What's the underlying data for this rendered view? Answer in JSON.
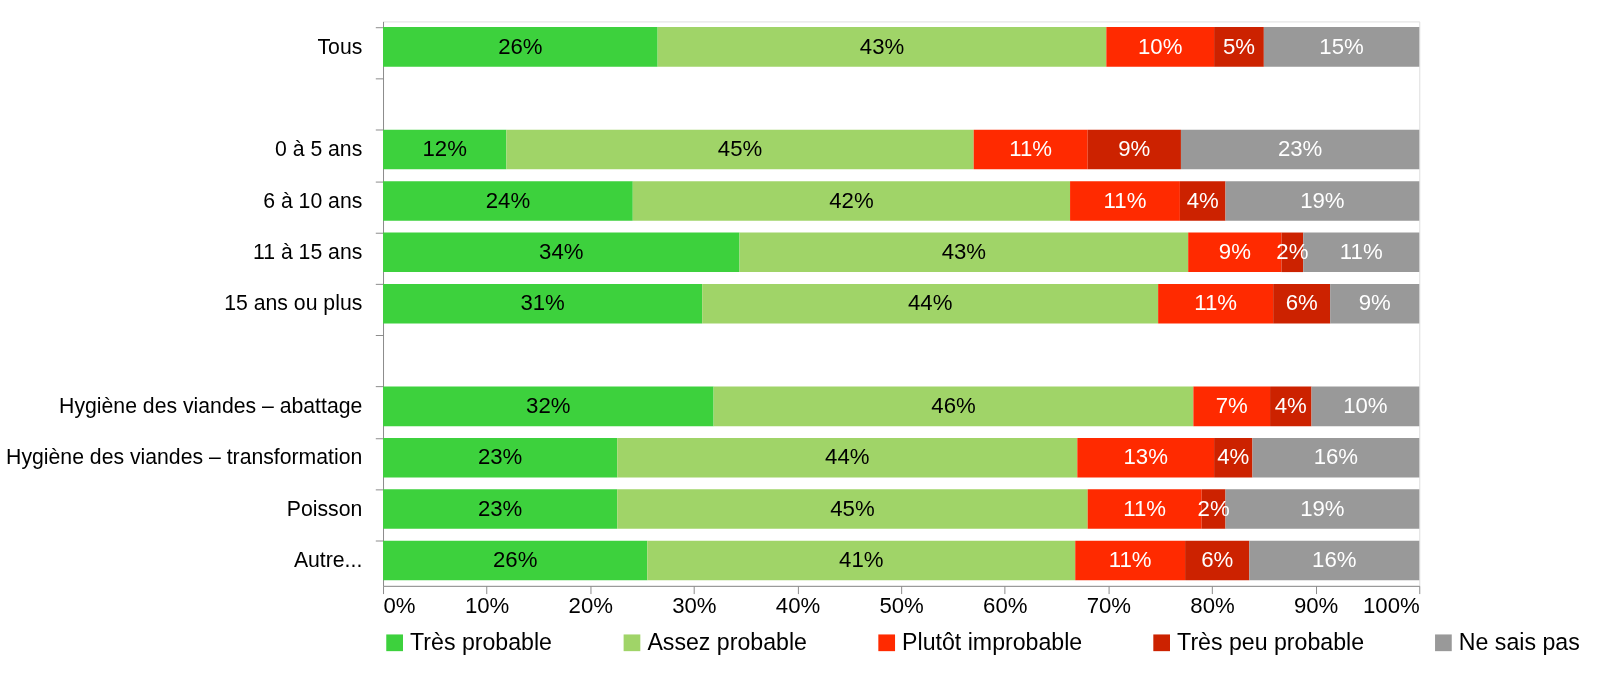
{
  "chart_data": {
    "type": "bar",
    "orientation": "horizontal",
    "stacked": true,
    "categories": [
      "Tous",
      null,
      "0 à 5 ans",
      "6 à 10 ans",
      "11 à 15 ans",
      "15 ans ou plus",
      null,
      "Hygiène des viandes – abattage",
      "Hygiène des viandes – transformation",
      "Poisson",
      "Autre..."
    ],
    "series": [
      {
        "name": "Très probable",
        "color": "#3dd13d",
        "values": [
          26.5,
          null,
          11.9,
          24.1,
          34.4,
          30.8,
          null,
          31.9,
          22.6,
          22.6,
          25.5
        ],
        "value_labels": [
          "26%",
          null,
          "12%",
          "24%",
          "34%",
          "31%",
          null,
          "32%",
          "23%",
          "23%",
          "26%"
        ]
      },
      {
        "name": "Assez probable",
        "color": "#a0d468",
        "values": [
          43.3,
          null,
          45.1,
          42.2,
          43.3,
          44.0,
          null,
          46.3,
          44.4,
          45.4,
          41.3
        ],
        "value_labels": [
          "43%",
          null,
          "45%",
          "42%",
          "43%",
          "44%",
          null,
          "46%",
          "44%",
          "45%",
          "41%"
        ]
      },
      {
        "name": "Plutôt improbable",
        "color": "#ff2a00",
        "values": [
          10.4,
          null,
          11.0,
          10.6,
          9.0,
          11.1,
          null,
          7.4,
          13.2,
          11.0,
          10.6
        ],
        "value_labels": [
          "10%",
          null,
          "11%",
          "11%",
          "9%",
          "11%",
          null,
          "7%",
          "13%",
          "11%",
          "11%"
        ]
      },
      {
        "name": "Très peu probable",
        "color": "#cc2200",
        "values": [
          4.8,
          null,
          9.0,
          4.4,
          2.1,
          5.5,
          null,
          4.0,
          3.7,
          2.3,
          6.2
        ],
        "value_labels": [
          "5%",
          null,
          "9%",
          "4%",
          "2%",
          "6%",
          null,
          "4%",
          "4%",
          "2%",
          "6%"
        ]
      },
      {
        "name": "Ne sais pas",
        "color": "#999999",
        "values": [
          15.0,
          null,
          23.0,
          18.7,
          11.2,
          8.6,
          null,
          10.4,
          16.1,
          18.7,
          16.4
        ],
        "value_labels": [
          "15%",
          null,
          "23%",
          "19%",
          "11%",
          "9%",
          null,
          "10%",
          "16%",
          "19%",
          "16%"
        ]
      }
    ],
    "xlim": [
      0,
      100
    ],
    "xticks": [
      {
        "value": 0,
        "label": "0%"
      },
      {
        "value": 10,
        "label": "10%"
      },
      {
        "value": 20,
        "label": "20%"
      },
      {
        "value": 30,
        "label": "30%"
      },
      {
        "value": 40,
        "label": "40%"
      },
      {
        "value": 50,
        "label": "50%"
      },
      {
        "value": 60,
        "label": "60%"
      },
      {
        "value": 70,
        "label": "70%"
      },
      {
        "value": 80,
        "label": "80%"
      },
      {
        "value": 90,
        "label": "90%"
      },
      {
        "value": 100,
        "label": "100%"
      }
    ],
    "legend": "bottom",
    "grid": false
  }
}
